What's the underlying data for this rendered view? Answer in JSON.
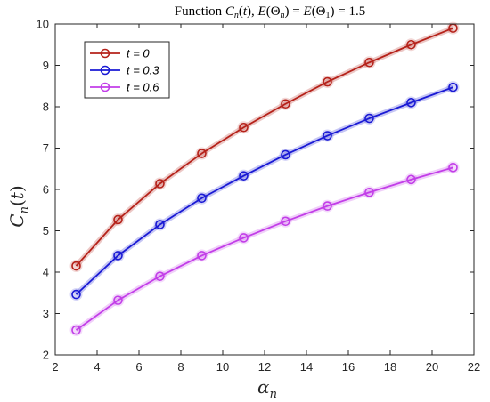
{
  "chart_data": {
    "type": "line",
    "title": "Function C_n(t), E(Θ_n) = E(Θ_1) = 1.5",
    "xlabel": "α_n",
    "ylabel": "C_n(t)",
    "xlim": [
      2,
      22
    ],
    "ylim": [
      2,
      10
    ],
    "xticks": [
      2,
      4,
      6,
      8,
      10,
      12,
      14,
      16,
      18,
      20,
      22
    ],
    "yticks": [
      2,
      3,
      4,
      5,
      6,
      7,
      8,
      9,
      10
    ],
    "grid": false,
    "legend_position": "top-left",
    "x": [
      3,
      5,
      7,
      9,
      11,
      13,
      15,
      17,
      19,
      21
    ],
    "series": [
      {
        "name": "t = 0",
        "color": "#b5221a",
        "values": [
          4.15,
          5.27,
          6.14,
          6.87,
          7.5,
          8.07,
          8.6,
          9.07,
          9.5,
          9.9
        ]
      },
      {
        "name": "t = 0.3",
        "color": "#1a1ad4",
        "values": [
          3.46,
          4.4,
          5.15,
          5.79,
          6.33,
          6.84,
          7.3,
          7.72,
          8.1,
          8.47
        ]
      },
      {
        "name": "t = 0.6",
        "color": "#c23ee8",
        "values": [
          2.6,
          3.32,
          3.9,
          4.4,
          4.83,
          5.23,
          5.6,
          5.93,
          6.24,
          6.53
        ]
      }
    ]
  }
}
